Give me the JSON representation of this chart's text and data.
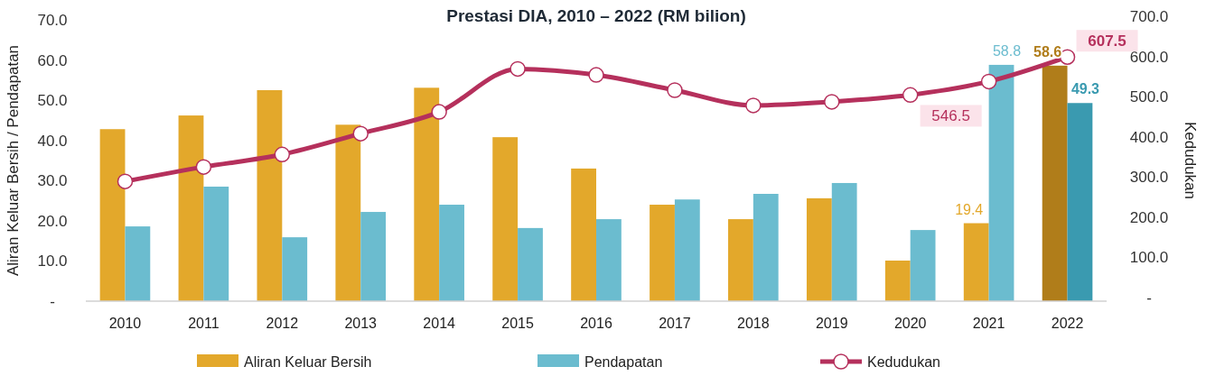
{
  "chart_data": {
    "type": "bar",
    "title": "Prestasi DIA, 2010 – 2022 (RM bilion)",
    "ylabel": "Aliran Keluar Bersih / Pendapatan",
    "y2label": "Kedudukan",
    "categories": [
      "2010",
      "2011",
      "2012",
      "2013",
      "2014",
      "2015",
      "2016",
      "2017",
      "2018",
      "2019",
      "2020",
      "2021",
      "2022"
    ],
    "series": [
      {
        "name": "Aliran Keluar Bersih",
        "color": "#e3a82b",
        "colors": [
          "#e3a82b",
          "#e3a82b",
          "#e3a82b",
          "#e3a82b",
          "#e3a82b",
          "#e3a82b",
          "#e3a82b",
          "#e3a82b",
          "#e3a82b",
          "#e3a82b",
          "#e3a82b",
          "#e3a82b",
          "#b07d1a"
        ],
        "values": [
          42.8,
          46.2,
          52.5,
          43.9,
          53.1,
          40.8,
          33.0,
          24.0,
          20.4,
          25.6,
          10.1,
          19.4,
          58.6
        ],
        "value_labels": [
          null,
          null,
          null,
          null,
          null,
          null,
          null,
          null,
          null,
          null,
          null,
          "19.4",
          "58.6"
        ]
      },
      {
        "name": "Pendapatan",
        "color": "#6bbccf",
        "colors": [
          "#6bbccf",
          "#6bbccf",
          "#6bbccf",
          "#6bbccf",
          "#6bbccf",
          "#6bbccf",
          "#6bbccf",
          "#6bbccf",
          "#6bbccf",
          "#6bbccf",
          "#6bbccf",
          "#6bbccf",
          "#3a9ab0"
        ],
        "values": [
          18.6,
          28.5,
          15.9,
          22.2,
          24.0,
          18.2,
          20.4,
          25.3,
          26.7,
          29.4,
          17.7,
          58.8,
          49.3
        ],
        "value_labels": [
          null,
          null,
          null,
          null,
          null,
          null,
          null,
          null,
          null,
          null,
          null,
          "58.8",
          "49.3"
        ]
      },
      {
        "name": "Kedudukan",
        "type": "line",
        "axis": "y2",
        "color": "#b5305c",
        "values": [
          298,
          334,
          365,
          417,
          471,
          578,
          563,
          525,
          487,
          496,
          513,
          546.5,
          607.5
        ],
        "value_labels": [
          null,
          null,
          null,
          null,
          null,
          null,
          null,
          null,
          null,
          null,
          null,
          "546.5",
          "607.5"
        ]
      }
    ],
    "ylim": [
      0,
      70
    ],
    "yticks": [
      {
        "value": 0,
        "label": "-"
      },
      {
        "value": 10,
        "label": "10.0"
      },
      {
        "value": 20,
        "label": "20.0"
      },
      {
        "value": 30,
        "label": "30.0"
      },
      {
        "value": 40,
        "label": "40.0"
      },
      {
        "value": 50,
        "label": "50.0"
      },
      {
        "value": 60,
        "label": "60.0"
      },
      {
        "value": 70,
        "label": "70.0"
      }
    ],
    "y2lim": [
      0,
      700
    ],
    "y2ticks": [
      {
        "value": 0,
        "label": "-"
      },
      {
        "value": 100,
        "label": "100.0"
      },
      {
        "value": 200,
        "label": "200.0"
      },
      {
        "value": 300,
        "label": "300.0"
      },
      {
        "value": 400,
        "label": "400.0"
      },
      {
        "value": 500,
        "label": "500.0"
      },
      {
        "value": 600,
        "label": "600.0"
      },
      {
        "value": 700,
        "label": "700.0"
      }
    ],
    "marker": "circle",
    "line_style": "solid",
    "grid": false,
    "legend": "bottom"
  }
}
